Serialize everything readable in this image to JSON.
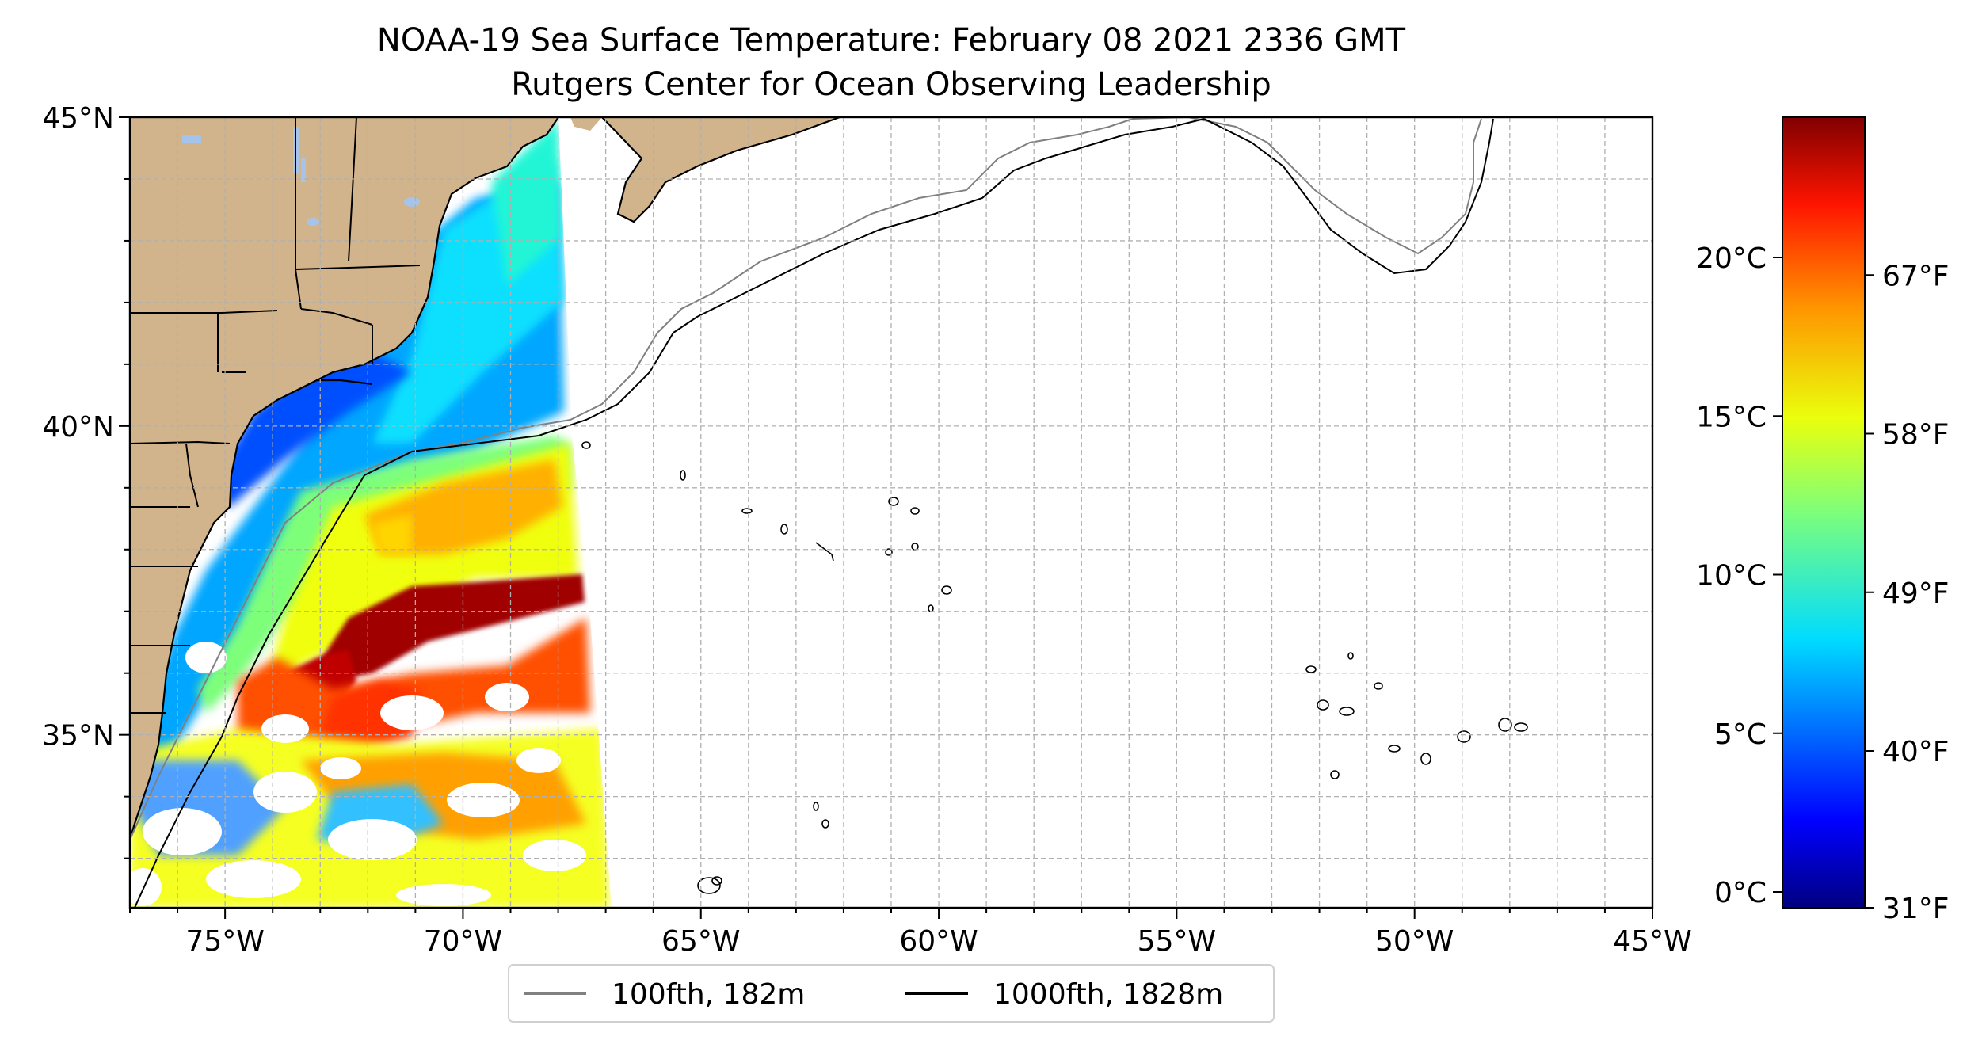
{
  "title": {
    "line1": "NOAA-19 Sea Surface Temperature: February 08 2021 2336 GMT",
    "line2": "Rutgers Center for Ocean Observing Leadership"
  },
  "map": {
    "lat_ticks": [
      {
        "value": 45,
        "label": "45°N"
      },
      {
        "value": 40,
        "label": "40°N"
      },
      {
        "value": 35,
        "label": "35°N"
      }
    ],
    "lon_ticks": [
      {
        "value": -75,
        "label": "75°W"
      },
      {
        "value": -70,
        "label": "70°W"
      },
      {
        "value": -65,
        "label": "65°W"
      },
      {
        "value": -60,
        "label": "60°W"
      },
      {
        "value": -55,
        "label": "55°W"
      },
      {
        "value": -50,
        "label": "50°W"
      },
      {
        "value": -45,
        "label": "45°W"
      }
    ],
    "land_color": "#d2b48c",
    "lake_color": "#a6c4ea",
    "isobath_100_color": "#808080",
    "isobath_1000_color": "#000000",
    "gridlines": "dashed"
  },
  "legend": {
    "placement": "bottom-center",
    "items": [
      {
        "label": "100fth, 182m",
        "color": "#808080"
      },
      {
        "label": "1000fth, 1828m",
        "color": "#000000"
      }
    ]
  },
  "colorbar": {
    "colormap": "jet",
    "celsius_ticks": [
      {
        "value": 20,
        "label": "20°C"
      },
      {
        "value": 15,
        "label": "15°C"
      },
      {
        "value": 10,
        "label": "10°C"
      },
      {
        "value": 5,
        "label": "5°C"
      },
      {
        "value": 0,
        "label": "0°C"
      }
    ],
    "fahrenheit_ticks": [
      {
        "value": 67,
        "label": "67°F"
      },
      {
        "value": 58,
        "label": "58°F"
      },
      {
        "value": 49,
        "label": "49°F"
      },
      {
        "value": 40,
        "label": "40°F"
      },
      {
        "value": 31,
        "label": "31°F"
      }
    ]
  }
}
